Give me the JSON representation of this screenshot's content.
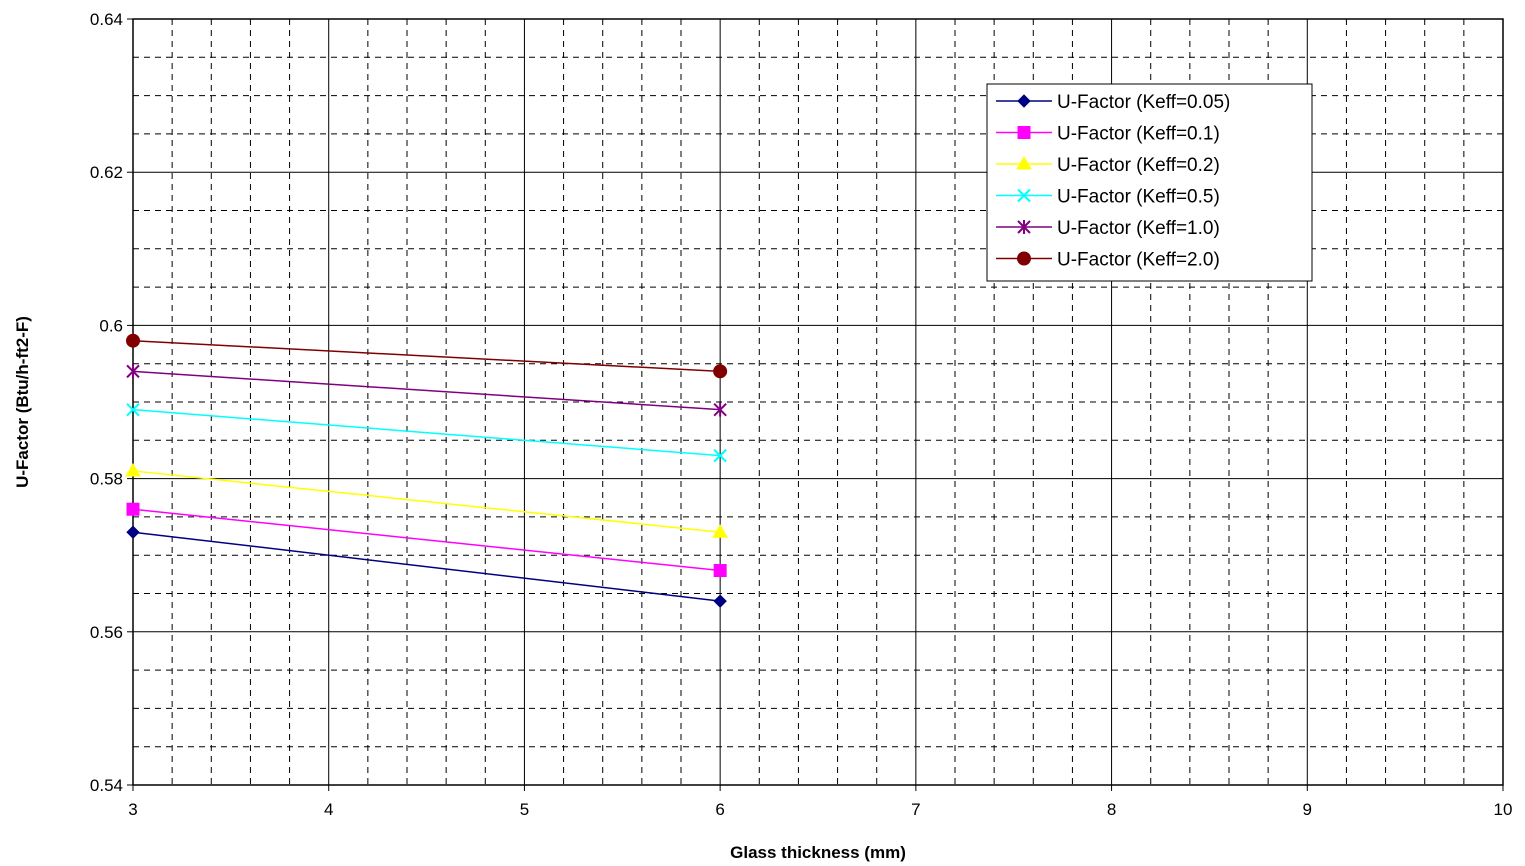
{
  "chart_data": {
    "type": "line",
    "title": "",
    "xlabel": "Glass thickness (mm)",
    "ylabel": "U-Factor (Btu/h-ft2-F)",
    "xlim": [
      3,
      10
    ],
    "ylim": [
      0.54,
      0.64
    ],
    "x_ticks": [
      3,
      4,
      5,
      6,
      7,
      8,
      9,
      10
    ],
    "y_ticks": [
      "0.54",
      "0.56",
      "0.58",
      "0.6",
      "0.62",
      "0.64"
    ],
    "grid": true,
    "legend_position": "top-right",
    "x": [
      3,
      6
    ],
    "series": [
      {
        "name": "U-Factor (Keff=0.05)",
        "values": [
          0.573,
          0.564
        ],
        "color": "#000080",
        "marker": "diamond"
      },
      {
        "name": "U-Factor (Keff=0.1)",
        "values": [
          0.576,
          0.568
        ],
        "color": "#FF00FF",
        "marker": "square"
      },
      {
        "name": "U-Factor (Keff=0.2)",
        "values": [
          0.581,
          0.573
        ],
        "color": "#FFFF00",
        "marker": "triangle"
      },
      {
        "name": "U-Factor (Keff=0.5)",
        "values": [
          0.589,
          0.583
        ],
        "color": "#00FFFF",
        "marker": "x"
      },
      {
        "name": "U-Factor (Keff=1.0)",
        "values": [
          0.594,
          0.589
        ],
        "color": "#800080",
        "marker": "star"
      },
      {
        "name": "U-Factor (Keff=2.0)",
        "values": [
          0.598,
          0.594
        ],
        "color": "#800000",
        "marker": "circle"
      }
    ]
  }
}
